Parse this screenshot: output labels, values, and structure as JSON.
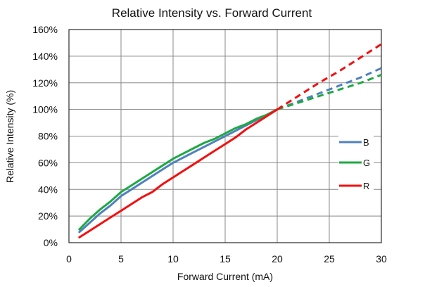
{
  "chart_data": {
    "type": "line",
    "title": "Relative Intensity vs. Forward Current",
    "xlabel": "Forward Current (mA)",
    "ylabel": "Relative Intensity (%)",
    "xlim": [
      0,
      30
    ],
    "ylim": [
      0,
      160
    ],
    "x_ticks": [
      0,
      5,
      10,
      15,
      20,
      25,
      30
    ],
    "y_ticks": [
      0,
      20,
      40,
      60,
      80,
      100,
      120,
      140,
      160
    ],
    "x_tick_labels": [
      "0",
      "5",
      "10",
      "15",
      "20",
      "25",
      "30"
    ],
    "y_tick_labels": [
      "0%",
      "20%",
      "40%",
      "60%",
      "80%",
      "100%",
      "120%",
      "140%",
      "160%"
    ],
    "grid": true,
    "legend_position": "right",
    "series": [
      {
        "name": "B",
        "color": "#4F81BD",
        "solid": [
          [
            1,
            8
          ],
          [
            2,
            15
          ],
          [
            3,
            22
          ],
          [
            4,
            28
          ],
          [
            5,
            35
          ],
          [
            6,
            40
          ],
          [
            7,
            45
          ],
          [
            8,
            50
          ],
          [
            9,
            55
          ],
          [
            10,
            60
          ],
          [
            11,
            64
          ],
          [
            12,
            68
          ],
          [
            13,
            72
          ],
          [
            14,
            76
          ],
          [
            15,
            80
          ],
          [
            16,
            84
          ],
          [
            17,
            88
          ],
          [
            18,
            92
          ],
          [
            19,
            96
          ],
          [
            20,
            100
          ]
        ],
        "dashed": [
          [
            20,
            100
          ],
          [
            22,
            106
          ],
          [
            24,
            112
          ],
          [
            26,
            118
          ],
          [
            28,
            124
          ],
          [
            30,
            131
          ]
        ]
      },
      {
        "name": "G",
        "color": "#1FA843",
        "solid": [
          [
            1,
            10
          ],
          [
            2,
            18
          ],
          [
            3,
            25
          ],
          [
            4,
            31
          ],
          [
            5,
            38
          ],
          [
            6,
            43
          ],
          [
            7,
            48
          ],
          [
            8,
            53
          ],
          [
            9,
            58
          ],
          [
            10,
            63
          ],
          [
            11,
            67
          ],
          [
            12,
            71
          ],
          [
            13,
            75
          ],
          [
            14,
            78
          ],
          [
            15,
            82
          ],
          [
            16,
            86
          ],
          [
            17,
            89
          ],
          [
            18,
            93
          ],
          [
            19,
            96
          ],
          [
            20,
            100
          ]
        ],
        "dashed": [
          [
            20,
            100
          ],
          [
            22,
            105
          ],
          [
            24,
            110
          ],
          [
            26,
            115
          ],
          [
            28,
            120
          ],
          [
            30,
            126
          ]
        ]
      },
      {
        "name": "R",
        "color": "#F21010",
        "solid": [
          [
            1,
            4
          ],
          [
            2,
            9
          ],
          [
            3,
            14
          ],
          [
            4,
            19
          ],
          [
            5,
            24
          ],
          [
            6,
            29
          ],
          [
            7,
            34
          ],
          [
            8,
            38
          ],
          [
            9,
            44
          ],
          [
            10,
            49
          ],
          [
            11,
            54
          ],
          [
            12,
            59
          ],
          [
            13,
            64
          ],
          [
            14,
            69
          ],
          [
            15,
            74
          ],
          [
            16,
            79
          ],
          [
            17,
            85
          ],
          [
            18,
            90
          ],
          [
            19,
            95
          ],
          [
            20,
            100
          ]
        ],
        "dashed": [
          [
            20,
            100
          ],
          [
            22,
            110
          ],
          [
            24,
            120
          ],
          [
            26,
            129
          ],
          [
            28,
            139
          ],
          [
            30,
            149
          ]
        ]
      }
    ]
  }
}
